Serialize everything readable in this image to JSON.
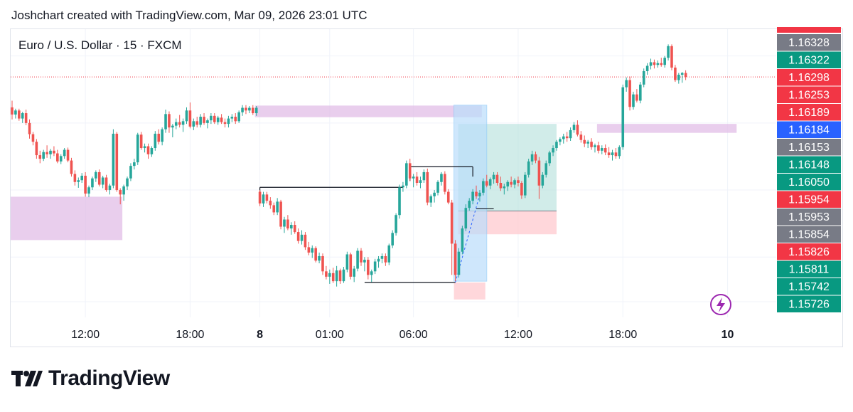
{
  "header": {
    "text": "Joshchart created with TradingView.com, Mar 09, 2026 23:01 UTC"
  },
  "symbol": {
    "label": "Euro / U.S. Dollar · 15 · FXCM"
  },
  "logo": {
    "text": "TradingView",
    "icon": "tradingview-logo-icon"
  },
  "colors": {
    "up": "#26a69a",
    "down": "#ef5350",
    "zone": "#e1bee7",
    "long_target": "#b2dfdb",
    "long_stop": "#ffcdd2",
    "selection": "#bbdefb"
  },
  "chart_data": {
    "type": "candlestick",
    "title": "Euro / U.S. Dollar · 15 · FXCM",
    "ylim": [
      1.15715,
      1.1636
    ],
    "x_ticks": [
      {
        "label": "12:00",
        "i": 21,
        "bold": false
      },
      {
        "label": "18:00",
        "i": 51,
        "bold": false
      },
      {
        "label": "8",
        "i": 71,
        "bold": true
      },
      {
        "label": "01:00",
        "i": 91,
        "bold": false
      },
      {
        "label": "06:00",
        "i": 115,
        "bold": false
      },
      {
        "label": "12:00",
        "i": 145,
        "bold": false
      },
      {
        "label": "18:00",
        "i": 175,
        "bold": false
      },
      {
        "label": "10",
        "i": 205,
        "bold": true
      }
    ],
    "price_labels": [
      {
        "value": "1.16328",
        "color": "#787b86"
      },
      {
        "value": "1.16322",
        "color": "#089981"
      },
      {
        "value": "1.16298",
        "color": "#f23645"
      },
      {
        "value": "1.16253",
        "color": "#f23645"
      },
      {
        "value": "1.16189",
        "color": "#f23645"
      },
      {
        "value": "1.16184",
        "color": "#2962ff"
      },
      {
        "value": "1.16153",
        "color": "#787b86"
      },
      {
        "value": "1.16148",
        "color": "#089981"
      },
      {
        "value": "1.16050",
        "color": "#089981"
      },
      {
        "value": "1.15954",
        "color": "#f23645"
      },
      {
        "value": "1.15953",
        "color": "#787b86"
      },
      {
        "value": "1.15854",
        "color": "#787b86"
      },
      {
        "value": "1.15826",
        "color": "#f23645"
      },
      {
        "value": "1.15811",
        "color": "#089981"
      },
      {
        "value": "1.15742",
        "color": "#089981"
      },
      {
        "value": "1.15726",
        "color": "#089981"
      }
    ],
    "last_price": 1.16253,
    "zones": [
      {
        "x0": 0,
        "x1": 32,
        "y0": 1.15985,
        "y1": 1.15888,
        "kind": "supply-demand"
      },
      {
        "x0": 70,
        "x1": 135,
        "y0": 1.16189,
        "y1": 1.16163,
        "kind": "supply-demand"
      },
      {
        "x0": 168,
        "x1": 208,
        "y0": 1.16148,
        "y1": 1.16128,
        "kind": "supply-demand"
      }
    ],
    "position": {
      "entry": 1.15953,
      "target": 1.16148,
      "stop": 1.15901,
      "x0": 127,
      "x1": 156
    },
    "selection_box": {
      "x0": 127,
      "x1": 136,
      "y0": 1.1619,
      "y1": 1.15796
    },
    "lines": [
      {
        "x0": 71,
        "x1": 112,
        "y": 1.16006
      },
      {
        "x0": 101,
        "x1": 127,
        "y": 1.15793
      },
      {
        "x0": 114,
        "x1": 132,
        "y": 1.16052
      },
      {
        "x0": 133,
        "x1": 138,
        "y": 1.15958
      }
    ],
    "candles": [
      [
        1.16185,
        1.162,
        1.16158,
        1.16169
      ],
      [
        1.16169,
        1.16182,
        1.1616,
        1.16178
      ],
      [
        1.16178,
        1.16182,
        1.16155,
        1.1616
      ],
      [
        1.1616,
        1.16175,
        1.1615,
        1.16172
      ],
      [
        1.16172,
        1.1618,
        1.16145,
        1.1615
      ],
      [
        1.1615,
        1.16158,
        1.16115,
        1.16125
      ],
      [
        1.16125,
        1.1613,
        1.161,
        1.16108
      ],
      [
        1.16108,
        1.16114,
        1.1607,
        1.16078
      ],
      [
        1.16078,
        1.16088,
        1.1606,
        1.1607
      ],
      [
        1.1607,
        1.1609,
        1.16065,
        1.16085
      ],
      [
        1.16085,
        1.161,
        1.16072,
        1.1608
      ],
      [
        1.1608,
        1.16092,
        1.1607,
        1.16088
      ],
      [
        1.16088,
        1.16098,
        1.16076,
        1.16082
      ],
      [
        1.16082,
        1.1609,
        1.1606,
        1.16064
      ],
      [
        1.16064,
        1.1608,
        1.16058,
        1.16076
      ],
      [
        1.16076,
        1.16094,
        1.1607,
        1.1609
      ],
      [
        1.1609,
        1.16095,
        1.16062,
        1.16066
      ],
      [
        1.16066,
        1.16072,
        1.1603,
        1.16036
      ],
      [
        1.16036,
        1.16044,
        1.1601,
        1.16018
      ],
      [
        1.16018,
        1.16028,
        1.16005,
        1.16022
      ],
      [
        1.16022,
        1.16038,
        1.16016,
        1.16032
      ],
      [
        1.16032,
        1.1604,
        1.15985,
        1.15992
      ],
      [
        1.15992,
        1.1601,
        1.15984,
        1.16006
      ],
      [
        1.16006,
        1.1603,
        1.16,
        1.16026
      ],
      [
        1.16026,
        1.16044,
        1.16018,
        1.1604
      ],
      [
        1.1604,
        1.16046,
        1.16008,
        1.16012
      ],
      [
        1.16012,
        1.16032,
        1.16004,
        1.16028
      ],
      [
        1.16028,
        1.16034,
        1.15996,
        1.16
      ],
      [
        1.16,
        1.16014,
        1.1599,
        1.1601
      ],
      [
        1.1601,
        1.16136,
        1.16004,
        1.16126
      ],
      [
        1.16126,
        1.1613,
        1.15996,
        1.16
      ],
      [
        1.16,
        1.16004,
        1.15968,
        1.1599
      ],
      [
        1.1599,
        1.16012,
        1.15976,
        1.16008
      ],
      [
        1.16008,
        1.1603,
        1.16,
        1.16026
      ],
      [
        1.16026,
        1.1606,
        1.1602,
        1.16054
      ],
      [
        1.16054,
        1.1607,
        1.16046,
        1.16062
      ],
      [
        1.16062,
        1.16128,
        1.16056,
        1.16124
      ],
      [
        1.16124,
        1.1613,
        1.1609,
        1.16094
      ],
      [
        1.16094,
        1.16104,
        1.16084,
        1.16098
      ],
      [
        1.16098,
        1.16104,
        1.1607,
        1.1608
      ],
      [
        1.1608,
        1.16098,
        1.16074,
        1.16094
      ],
      [
        1.16094,
        1.16132,
        1.16088,
        1.16126
      ],
      [
        1.16126,
        1.16136,
        1.16102,
        1.16108
      ],
      [
        1.16108,
        1.1614,
        1.161,
        1.16136
      ],
      [
        1.16136,
        1.1618,
        1.16128,
        1.1617
      ],
      [
        1.1617,
        1.16176,
        1.16128,
        1.1614
      ],
      [
        1.1614,
        1.16148,
        1.16118,
        1.16144
      ],
      [
        1.16144,
        1.1616,
        1.16136,
        1.16152
      ],
      [
        1.16152,
        1.16168,
        1.1614,
        1.16146
      ],
      [
        1.16146,
        1.1616,
        1.1613,
        1.16154
      ],
      [
        1.16154,
        1.16185,
        1.16148,
        1.16178
      ],
      [
        1.16178,
        1.16196,
        1.16138,
        1.16142
      ],
      [
        1.16142,
        1.1616,
        1.16134,
        1.16154
      ],
      [
        1.16154,
        1.16164,
        1.1614,
        1.16146
      ],
      [
        1.16146,
        1.1617,
        1.1614,
        1.16164
      ],
      [
        1.16164,
        1.16172,
        1.16146,
        1.1615
      ],
      [
        1.1615,
        1.1616,
        1.16138,
        1.16156
      ],
      [
        1.16156,
        1.16172,
        1.16148,
        1.16166
      ],
      [
        1.16166,
        1.16172,
        1.16148,
        1.16152
      ],
      [
        1.16152,
        1.16166,
        1.16146,
        1.16162
      ],
      [
        1.16162,
        1.1617,
        1.16148,
        1.16152
      ],
      [
        1.16152,
        1.1616,
        1.1614,
        1.16148
      ],
      [
        1.16148,
        1.16166,
        1.1614,
        1.1616
      ],
      [
        1.1616,
        1.1617,
        1.16152,
        1.16164
      ],
      [
        1.16164,
        1.16172,
        1.16148,
        1.16154
      ],
      [
        1.16154,
        1.16178,
        1.1615,
        1.16174
      ],
      [
        1.16174,
        1.1619,
        1.16166,
        1.16184
      ],
      [
        1.16184,
        1.1619,
        1.1617,
        1.16178
      ],
      [
        1.16178,
        1.16188,
        1.16172,
        1.16184
      ],
      [
        1.16184,
        1.1619,
        1.16168,
        1.16172
      ],
      [
        1.16172,
        1.16188,
        1.16166,
        1.16184
      ],
      [
        1.15996,
        1.16,
        1.15964,
        1.1597
      ],
      [
        1.1597,
        1.15996,
        1.15962,
        1.1599
      ],
      [
        1.1599,
        1.15996,
        1.1597,
        1.15976
      ],
      [
        1.15976,
        1.15984,
        1.15958,
        1.15966
      ],
      [
        1.15966,
        1.15972,
        1.15944,
        1.1595
      ],
      [
        1.1595,
        1.15982,
        1.15944,
        1.15974
      ],
      [
        1.15974,
        1.15978,
        1.15912,
        1.15918
      ],
      [
        1.15918,
        1.1594,
        1.15904,
        1.15934
      ],
      [
        1.15934,
        1.15944,
        1.1591,
        1.15914
      ],
      [
        1.15914,
        1.15928,
        1.159,
        1.15922
      ],
      [
        1.15922,
        1.1593,
        1.15902,
        1.15906
      ],
      [
        1.15906,
        1.15914,
        1.1588,
        1.15886
      ],
      [
        1.15886,
        1.1591,
        1.15878,
        1.159
      ],
      [
        1.159,
        1.15906,
        1.15866,
        1.15872
      ],
      [
        1.15872,
        1.15884,
        1.15854,
        1.1586
      ],
      [
        1.1586,
        1.15876,
        1.15848,
        1.1587
      ],
      [
        1.1587,
        1.15874,
        1.15838,
        1.15842
      ],
      [
        1.15842,
        1.1586,
        1.15836,
        1.15852
      ],
      [
        1.15852,
        1.15858,
        1.1581,
        1.15818
      ],
      [
        1.15818,
        1.1583,
        1.158,
        1.15806
      ],
      [
        1.15806,
        1.15822,
        1.1579,
        1.15814
      ],
      [
        1.15814,
        1.15826,
        1.15792,
        1.15796
      ],
      [
        1.15796,
        1.1583,
        1.15784,
        1.1582
      ],
      [
        1.1582,
        1.15824,
        1.1579,
        1.15796
      ],
      [
        1.15796,
        1.15828,
        1.15792,
        1.15822
      ],
      [
        1.15822,
        1.15862,
        1.15816,
        1.15856
      ],
      [
        1.15856,
        1.1586,
        1.158,
        1.15806
      ],
      [
        1.15806,
        1.1583,
        1.15794,
        1.15824
      ],
      [
        1.15824,
        1.1587,
        1.15818,
        1.15864
      ],
      [
        1.15864,
        1.1587,
        1.1583,
        1.15838
      ],
      [
        1.15838,
        1.1585,
        1.15818,
        1.15844
      ],
      [
        1.15844,
        1.1585,
        1.158,
        1.1581
      ],
      [
        1.1581,
        1.15822,
        1.15794,
        1.15818
      ],
      [
        1.15818,
        1.15846,
        1.15812,
        1.1584
      ],
      [
        1.1584,
        1.15852,
        1.15826,
        1.15846
      ],
      [
        1.15846,
        1.15858,
        1.15836,
        1.15852
      ],
      [
        1.15852,
        1.15858,
        1.1583,
        1.15838
      ],
      [
        1.15838,
        1.1588,
        1.15832,
        1.15876
      ],
      [
        1.15876,
        1.1591,
        1.1587,
        1.15904
      ],
      [
        1.15904,
        1.15948,
        1.15898,
        1.15944
      ],
      [
        1.15944,
        1.16012,
        1.15936,
        1.16006
      ],
      [
        1.16006,
        1.16018,
        1.15996,
        1.1601
      ],
      [
        1.1601,
        1.16066,
        1.16004,
        1.1606
      ],
      [
        1.1606,
        1.1607,
        1.1602,
        1.16026
      ],
      [
        1.16026,
        1.16036,
        1.16006,
        1.1603
      ],
      [
        1.1603,
        1.1604,
        1.1601,
        1.16016
      ],
      [
        1.16016,
        1.1603,
        1.16004,
        1.16022
      ],
      [
        1.16022,
        1.16046,
        1.16016,
        1.1604
      ],
      [
        1.1604,
        1.16048,
        1.15966,
        1.15972
      ],
      [
        1.15972,
        1.1599,
        1.15962,
        1.15986
      ],
      [
        1.15986,
        1.16,
        1.15972,
        1.15994
      ],
      [
        1.15994,
        1.16022,
        1.15988,
        1.16018
      ],
      [
        1.16018,
        1.1604,
        1.1601,
        1.16036
      ],
      [
        1.16036,
        1.16042,
        1.1599,
        1.15996
      ],
      [
        1.15996,
        1.16002,
        1.15968,
        1.15972
      ],
      [
        1.15972,
        1.15978,
        1.1581,
        1.1588
      ],
      [
        1.1588,
        1.15888,
        1.15796,
        1.1581
      ],
      [
        1.1581,
        1.1587,
        1.15804,
        1.15862
      ],
      [
        1.15862,
        1.1592,
        1.15856,
        1.15914
      ],
      [
        1.15914,
        1.15968,
        1.15908,
        1.1596
      ],
      [
        1.1596,
        1.15982,
        1.15954,
        1.15976
      ],
      [
        1.15976,
        1.16002,
        1.15968,
        1.15996
      ],
      [
        1.15996,
        1.1601,
        1.1598,
        1.15986
      ],
      [
        1.15986,
        1.16,
        1.15974,
        1.15994
      ],
      [
        1.15994,
        1.16026,
        1.15988,
        1.1602
      ],
      [
        1.1602,
        1.16034,
        1.16006,
        1.1601
      ],
      [
        1.1601,
        1.16028,
        1.16002,
        1.16024
      ],
      [
        1.16024,
        1.1604,
        1.16014,
        1.16034
      ],
      [
        1.16034,
        1.1604,
        1.1601,
        1.16016
      ],
      [
        1.16016,
        1.1603,
        1.15998,
        1.16004
      ],
      [
        1.16004,
        1.16014,
        1.1599,
        1.16008
      ],
      [
        1.16008,
        1.16022,
        1.15998,
        1.16018
      ],
      [
        1.16018,
        1.1603,
        1.16006,
        1.16012
      ],
      [
        1.16012,
        1.16026,
        1.16004,
        1.16022
      ],
      [
        1.16022,
        1.1603,
        1.16008,
        1.16016
      ],
      [
        1.16016,
        1.1602,
        1.1598,
        1.15988
      ],
      [
        1.15988,
        1.1604,
        1.15982,
        1.16034
      ],
      [
        1.16034,
        1.1607,
        1.16028,
        1.16064
      ],
      [
        1.16064,
        1.16088,
        1.16056,
        1.1608
      ],
      [
        1.1608,
        1.16086,
        1.1606,
        1.16066
      ],
      [
        1.16066,
        1.16074,
        1.1598,
        1.1601
      ],
      [
        1.1601,
        1.1604,
        1.16004,
        1.16034
      ],
      [
        1.16034,
        1.16066,
        1.16028,
        1.1606
      ],
      [
        1.1606,
        1.16088,
        1.16054,
        1.16084
      ],
      [
        1.16084,
        1.161,
        1.16076,
        1.16094
      ],
      [
        1.16094,
        1.16112,
        1.16088,
        1.16108
      ],
      [
        1.16108,
        1.16118,
        1.161,
        1.16114
      ],
      [
        1.16114,
        1.16126,
        1.16104,
        1.1612
      ],
      [
        1.1612,
        1.1613,
        1.16108,
        1.16116
      ],
      [
        1.16116,
        1.1614,
        1.1611,
        1.16134
      ],
      [
        1.16134,
        1.16152,
        1.16128,
        1.16146
      ],
      [
        1.16146,
        1.16156,
        1.1612,
        1.16124
      ],
      [
        1.16124,
        1.16132,
        1.16106,
        1.16112
      ],
      [
        1.16112,
        1.16122,
        1.16096,
        1.16104
      ],
      [
        1.16104,
        1.16112,
        1.16094,
        1.16108
      ],
      [
        1.16108,
        1.16116,
        1.1609,
        1.16096
      ],
      [
        1.16096,
        1.16104,
        1.16084,
        1.161
      ],
      [
        1.161,
        1.16108,
        1.16082,
        1.16088
      ],
      [
        1.16088,
        1.161,
        1.1608,
        1.16094
      ],
      [
        1.16094,
        1.16102,
        1.16078,
        1.16084
      ],
      [
        1.16084,
        1.16096,
        1.16072,
        1.16078
      ],
      [
        1.16078,
        1.1609,
        1.16066,
        1.16084
      ],
      [
        1.16084,
        1.16094,
        1.1607,
        1.16076
      ],
      [
        1.16076,
        1.161,
        1.1607,
        1.16096
      ],
      [
        1.16096,
        1.16236,
        1.1609,
        1.1623
      ],
      [
        1.1623,
        1.16252,
        1.1622,
        1.16246
      ],
      [
        1.16246,
        1.16254,
        1.16178,
        1.16186
      ],
      [
        1.16186,
        1.1622,
        1.1618,
        1.16214
      ],
      [
        1.16214,
        1.16226,
        1.16196,
        1.162
      ],
      [
        1.162,
        1.16242,
        1.16194,
        1.16236
      ],
      [
        1.16236,
        1.16272,
        1.1623,
        1.16266
      ],
      [
        1.16266,
        1.16284,
        1.16258,
        1.16278
      ],
      [
        1.16278,
        1.16294,
        1.1627,
        1.16286
      ],
      [
        1.16286,
        1.16292,
        1.16272,
        1.1628
      ],
      [
        1.1628,
        1.1629,
        1.16274,
        1.16284
      ],
      [
        1.16284,
        1.16296,
        1.16276,
        1.1628
      ],
      [
        1.1628,
        1.163,
        1.16274,
        1.16296
      ],
      [
        1.16296,
        1.16326,
        1.1629,
        1.16322
      ],
      [
        1.16322,
        1.16326,
        1.16268,
        1.16274
      ],
      [
        1.16274,
        1.1628,
        1.16242,
        1.16246
      ],
      [
        1.16246,
        1.16262,
        1.16238,
        1.16258
      ],
      [
        1.16258,
        1.16264,
        1.1624,
        1.16262
      ],
      [
        1.16262,
        1.16268,
        1.16246,
        1.16253
      ]
    ]
  }
}
